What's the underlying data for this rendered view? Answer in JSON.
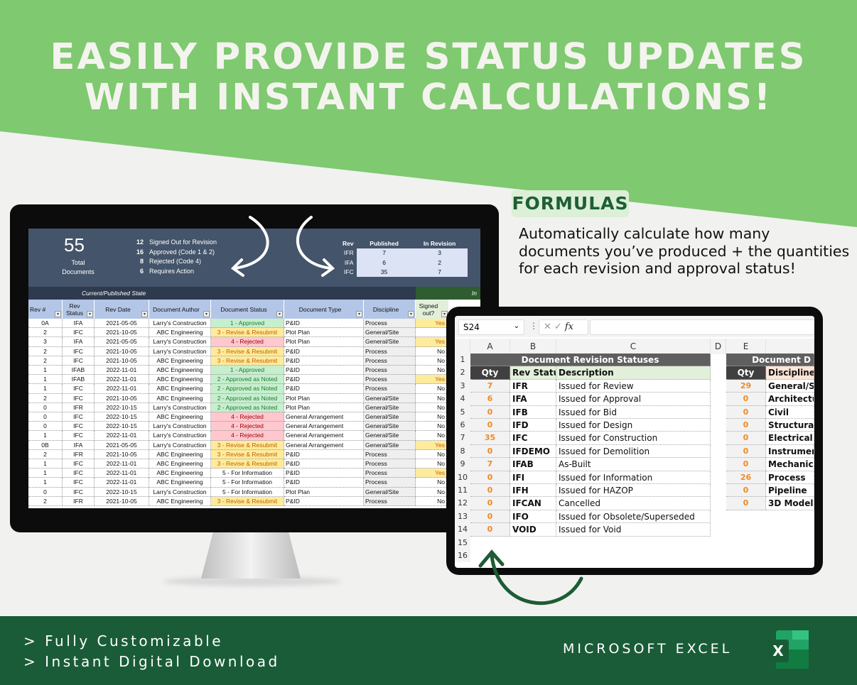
{
  "headline": {
    "line1": "EASILY PROVIDE STATUS UPDATES",
    "line2": "WITH INSTANT CALCULATIONS!"
  },
  "callout": {
    "badge": "FORMULAS",
    "text": "Automatically calculate how many documents you’ve produced + the quantities for each revision and approval status!"
  },
  "dashboard": {
    "total": "55",
    "total_label1": "Total",
    "total_label2": "Documents",
    "stats": [
      {
        "n": "12",
        "label": "Signed Out for Revision"
      },
      {
        "n": "16",
        "label": "Approved (Code 1 & 2)"
      },
      {
        "n": "8",
        "label": "Rejected (Code 4)"
      },
      {
        "n": "6",
        "label": "Requires Action"
      }
    ],
    "rev_table": {
      "headers": [
        "Rev",
        "Published",
        "In Revision"
      ],
      "rows": [
        [
          "IFR",
          "7",
          "3"
        ],
        [
          "IFA",
          "6",
          "2"
        ],
        [
          "IFC",
          "35",
          "7"
        ]
      ]
    },
    "band_left": "Current/Published State",
    "band_right": "In",
    "columns": [
      "Rev #",
      "Rev Status",
      "Rev Date",
      "Document Author",
      "Document Status",
      "Document Type",
      "Discipline",
      "Signed out?"
    ],
    "rows": [
      [
        "0A",
        "IFA",
        "2021-05-05",
        "Larry's Construction",
        "1 - Approved",
        "P&ID",
        "Process",
        "Yes"
      ],
      [
        "2",
        "IFC",
        "2021-10-05",
        "ABC Engineering",
        "3 - Revise & Resubmit",
        "Plot Plan",
        "General/Site",
        ""
      ],
      [
        "3",
        "IFA",
        "2021-05-05",
        "Larry's Construction",
        "4 - Rejected",
        "Plot Plan",
        "General/Site",
        "Yes"
      ],
      [
        "2",
        "IFC",
        "2021-10-05",
        "Larry's Construction",
        "3 - Revise & Resubmit",
        "P&ID",
        "Process",
        "No"
      ],
      [
        "2",
        "IFC",
        "2021-10-05",
        "ABC Engineering",
        "3 - Revise & Resubmit",
        "P&ID",
        "Process",
        "No"
      ],
      [
        "1",
        "IFAB",
        "2022-11-01",
        "ABC Engineering",
        "1 - Approved",
        "P&ID",
        "Process",
        "No"
      ],
      [
        "1",
        "IFAB",
        "2022-11-01",
        "ABC Engineering",
        "2 - Approved as Noted",
        "P&ID",
        "Process",
        "Yes"
      ],
      [
        "1",
        "IFC",
        "2022-11-01",
        "ABC Engineering",
        "2 - Approved as Noted",
        "P&ID",
        "Process",
        "No"
      ],
      [
        "2",
        "IFC",
        "2021-10-05",
        "ABC Engineering",
        "2 - Approved as Noted",
        "Plot Plan",
        "General/Site",
        "No"
      ],
      [
        "0",
        "IFR",
        "2022-10-15",
        "Larry's Construction",
        "2 - Approved as Noted",
        "Plot Plan",
        "General/Site",
        "No"
      ],
      [
        "0",
        "IFC",
        "2022-10-15",
        "ABC Engineering",
        "4 - Rejected",
        "General Arrangement",
        "General/Site",
        "No"
      ],
      [
        "0",
        "IFC",
        "2022-10-15",
        "Larry's Construction",
        "4 - Rejected",
        "General Arrangement",
        "General/Site",
        "No"
      ],
      [
        "1",
        "IFC",
        "2022-11-01",
        "Larry's Construction",
        "4 - Rejected",
        "General Arrangement",
        "General/Site",
        "No"
      ],
      [
        "0B",
        "IFA",
        "2021-05-05",
        "Larry's Construction",
        "3 - Revise & Resubmit",
        "General Arrangement",
        "General/Site",
        "Yes"
      ],
      [
        "2",
        "IFR",
        "2021-10-05",
        "ABC Engineering",
        "3 - Revise & Resubmit",
        "P&ID",
        "Process",
        "No"
      ],
      [
        "1",
        "IFC",
        "2022-11-01",
        "ABC Engineering",
        "3 - Revise & Resubmit",
        "P&ID",
        "Process",
        "No"
      ],
      [
        "1",
        "IFC",
        "2022-11-01",
        "ABC Engineering",
        "5 - For Information",
        "P&ID",
        "Process",
        "Yes"
      ],
      [
        "1",
        "IFC",
        "2022-11-01",
        "ABC Engineering",
        "5 - For Information",
        "P&ID",
        "Process",
        "No"
      ],
      [
        "0",
        "IFC",
        "2022-10-15",
        "Larry's Construction",
        "5 - For Information",
        "Plot Plan",
        "General/Site",
        "No"
      ],
      [
        "2",
        "IFR",
        "2021-10-05",
        "ABC Engineering",
        "3 - Revise & Resubmit",
        "P&ID",
        "Process",
        "No"
      ]
    ]
  },
  "sheet": {
    "name_box": "S24",
    "fx": "fx",
    "col_letters": [
      "A",
      "B",
      "C",
      "D",
      "E"
    ],
    "title_left": "Document Revision Statuses",
    "title_right": "Document D",
    "hdr_left": [
      "Qty",
      "Rev Status",
      "Description"
    ],
    "hdr_right": [
      "Qty",
      "Discipline"
    ],
    "left_rows": [
      [
        "7",
        "IFR",
        "Issued for Review"
      ],
      [
        "6",
        "IFA",
        "Issued for Approval"
      ],
      [
        "0",
        "IFB",
        "Issued for Bid"
      ],
      [
        "0",
        "IFD",
        "Issued for Design"
      ],
      [
        "35",
        "IFC",
        "Issued for Construction"
      ],
      [
        "0",
        "IFDEMO",
        "Issued for Demolition"
      ],
      [
        "7",
        "IFAB",
        "As-Built"
      ],
      [
        "0",
        "IFI",
        "Issued for Information"
      ],
      [
        "0",
        "IFH",
        "Issued for HAZOP"
      ],
      [
        "0",
        "IFCAN",
        "Cancelled"
      ],
      [
        "0",
        "IFO",
        "Issued for Obsolete/Superseded"
      ],
      [
        "0",
        "VOID",
        "Issued for Void"
      ]
    ],
    "right_rows": [
      [
        "29",
        "General/Site"
      ],
      [
        "0",
        "Architectural"
      ],
      [
        "0",
        "Civil"
      ],
      [
        "0",
        "Structural"
      ],
      [
        "0",
        "Electrical"
      ],
      [
        "0",
        "Instrumentation"
      ],
      [
        "0",
        "Mechanical"
      ],
      [
        "26",
        "Process"
      ],
      [
        "0",
        "Pipeline"
      ],
      [
        "0",
        "3D Model"
      ]
    ]
  },
  "footer": {
    "bullets": [
      "> Fully Customizable",
      "> Instant Digital Download"
    ],
    "brand": "MICROSOFT EXCEL",
    "logo_letter": "X"
  },
  "colors": {
    "top_green": "#7fc970",
    "footer_green": "#1a5c38",
    "approved": "#c6efce",
    "revise": "#ffeb9c",
    "rejected": "#ffc7ce",
    "qty_orange": "#f08a24"
  }
}
